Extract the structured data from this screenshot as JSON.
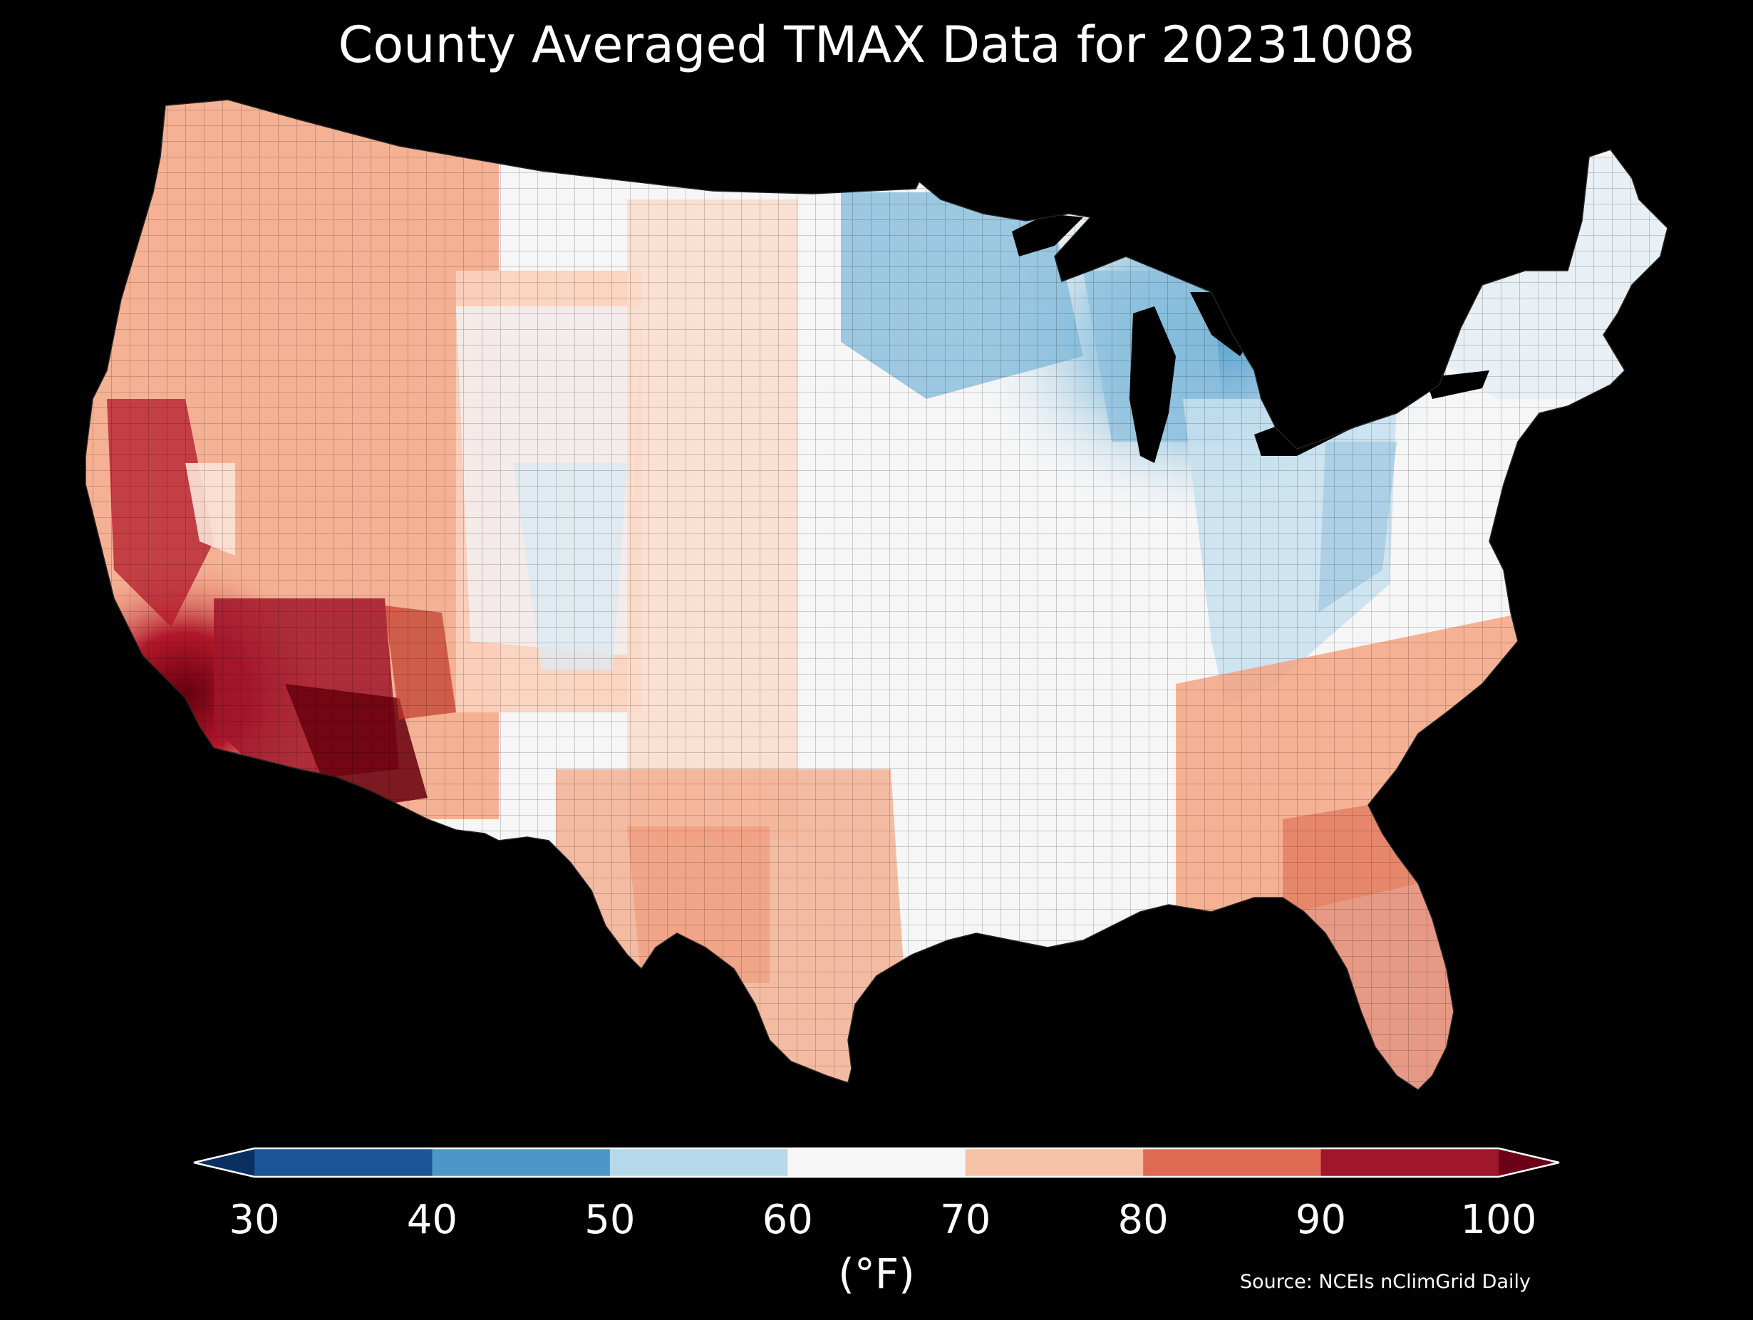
{
  "title": "County Averaged TMAX Data for 20231008",
  "colorbar": {
    "ticks": [
      "30",
      "40",
      "50",
      "60",
      "70",
      "80",
      "90",
      "100"
    ],
    "units_label": "(°F)",
    "bins": [
      {
        "range": [
          30,
          40
        ],
        "color": "#1b5597"
      },
      {
        "range": [
          40,
          50
        ],
        "color": "#4b98c8"
      },
      {
        "range": [
          50,
          60
        ],
        "color": "#b7d8ea"
      },
      {
        "range": [
          60,
          70
        ],
        "color": "#f6f6f6"
      },
      {
        "range": [
          70,
          80
        ],
        "color": "#f8c2a6"
      },
      {
        "range": [
          80,
          90
        ],
        "color": "#de6a54"
      },
      {
        "range": [
          90,
          100
        ],
        "color": "#a0162a"
      }
    ],
    "under_color": "#0a2f62",
    "over_color": "#6c0117"
  },
  "source": "Source: NCEIs nClimGrid Daily",
  "map": {
    "region": "contiguous-us-counties",
    "variable": "TMAX",
    "background": "#000000",
    "regional_values_F": {
      "southern-california-desert": 100,
      "southwest-arizona": 100,
      "central-valley-california": 92,
      "south-florida": 88,
      "west-texas": 80,
      "southeast-coast": 80,
      "great-basin": 76,
      "pacific-northwest-coast": 76,
      "northern-rockies": 68,
      "central-plains": 70,
      "ohio-valley": 62,
      "appalachians": 55,
      "upper-midwest": 50,
      "minnesota-north": 44,
      "new-england": 60
    }
  }
}
